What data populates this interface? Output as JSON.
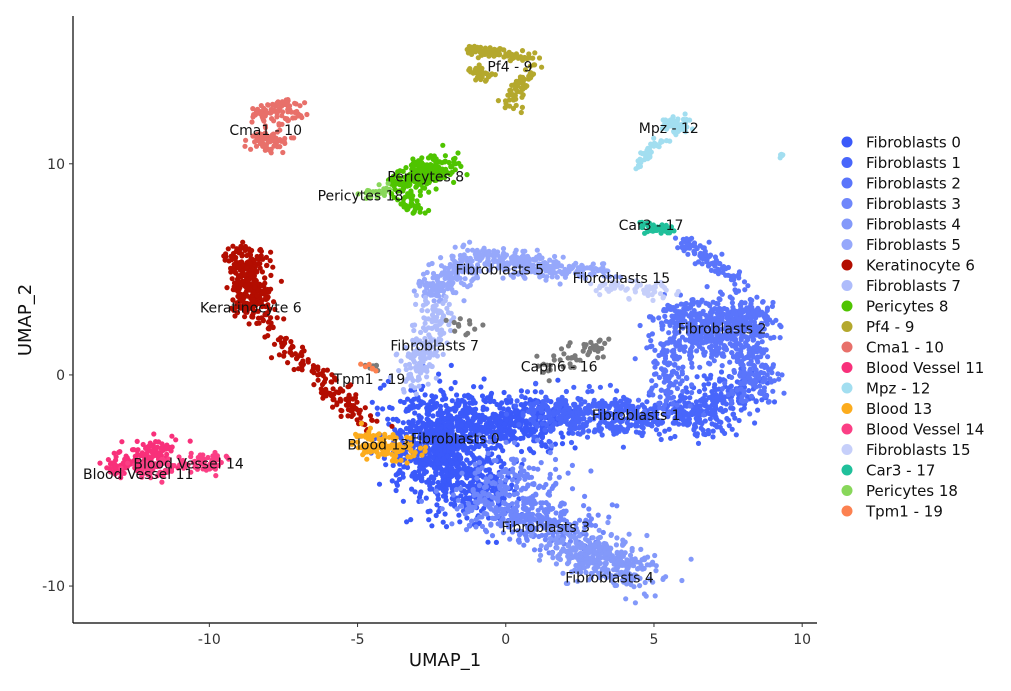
{
  "chart_data": {
    "type": "scatter",
    "title": "",
    "xlabel": "UMAP_1",
    "ylabel": "UMAP_2",
    "xlim": [
      -14.6,
      10.5
    ],
    "ylim": [
      -11.75,
      17.0
    ],
    "xticks": [
      -10,
      -5,
      0,
      5,
      10
    ],
    "yticks": [
      -10,
      0,
      10
    ],
    "grid": false,
    "legend": "right",
    "legend_entries": [
      {
        "name": "Fibroblasts 0",
        "color": "#3a59fa"
      },
      {
        "name": "Fibroblasts 1",
        "color": "#4866fb"
      },
      {
        "name": "Fibroblasts 2",
        "color": "#5a75fb"
      },
      {
        "name": "Fibroblasts 3",
        "color": "#6f87fb"
      },
      {
        "name": "Fibroblasts 4",
        "color": "#8399fa"
      },
      {
        "name": "Fibroblasts 5",
        "color": "#96a8fb"
      },
      {
        "name": "Keratinocyte 6",
        "color": "#b30d00"
      },
      {
        "name": "Fibroblasts 7",
        "color": "#aebcfb"
      },
      {
        "name": "Pericytes 8",
        "color": "#4fc400"
      },
      {
        "name": "Pf4 - 9",
        "color": "#b4a82d"
      },
      {
        "name": "Cma1 - 10",
        "color": "#e8706a"
      },
      {
        "name": "Blood Vessel 11",
        "color": "#f8307a"
      },
      {
        "name": "Mpz - 12",
        "color": "#a2def0"
      },
      {
        "name": "Blood 13",
        "color": "#fcac1d"
      },
      {
        "name": "Blood Vessel 14",
        "color": "#fb3f85"
      },
      {
        "name": "Fibroblasts 15",
        "color": "#c6cffa"
      },
      {
        "name": "Car3 - 17",
        "color": "#20c09b"
      },
      {
        "name": "Pericytes 18",
        "color": "#88d75a"
      },
      {
        "name": "Tpm1 - 19",
        "color": "#fc8150"
      }
    ],
    "clusters": [
      {
        "name": "Fibroblasts 0",
        "label": "Fibroblasts 0",
        "color": "#3a59fa",
        "label_pos": [
          -1.7,
          -3.0
        ],
        "segments": [
          [
            -2.6,
            -1.5,
            -1.5,
            -5.5,
            0.9,
            700
          ],
          [
            -1.5,
            -2.2,
            1.5,
            -2.2,
            0.6,
            400
          ],
          [
            -2.8,
            -2.5,
            -0.5,
            -6.5,
            0.6,
            250
          ]
        ]
      },
      {
        "name": "Fibroblasts 1",
        "label": "Fibroblasts 1",
        "color": "#4866fb",
        "label_pos": [
          4.4,
          -1.9
        ],
        "segments": [
          [
            1.0,
            -1.8,
            7.0,
            -2.0,
            0.5,
            550
          ],
          [
            6.5,
            -1.5,
            8.3,
            -0.5,
            0.5,
            150
          ]
        ]
      },
      {
        "name": "Fibroblasts 2",
        "label": "Fibroblasts 2",
        "color": "#5a75fb",
        "label_pos": [
          7.3,
          2.2
        ],
        "segments": [
          [
            5.5,
            2.8,
            8.3,
            2.6,
            0.45,
            300
          ],
          [
            5.4,
            1.5,
            5.6,
            -1.2,
            0.4,
            120
          ],
          [
            8.2,
            3.5,
            8.3,
            -1.0,
            0.4,
            250
          ],
          [
            6.0,
            1.8,
            7.8,
            1.5,
            0.5,
            200
          ],
          [
            5.9,
            6.3,
            8.0,
            4.5,
            0.2,
            90
          ]
        ]
      },
      {
        "name": "Fibroblasts 3",
        "label": "Fibroblasts 3",
        "color": "#6f87fb",
        "label_pos": [
          1.35,
          -7.2
        ],
        "segments": [
          [
            -1.0,
            -6.0,
            2.5,
            -7.5,
            0.6,
            350
          ],
          [
            0.0,
            -4.0,
            1.5,
            -6.0,
            0.7,
            100
          ]
        ]
      },
      {
        "name": "Fibroblasts 4",
        "label": "Fibroblasts 4",
        "color": "#8399fa",
        "label_pos": [
          3.5,
          -9.6
        ],
        "segments": [
          [
            1.8,
            -8.0,
            4.6,
            -9.4,
            0.55,
            350
          ]
        ]
      },
      {
        "name": "Fibroblasts 5",
        "label": "Fibroblasts 5",
        "color": "#96a8fb",
        "label_pos": [
          -0.2,
          5.0
        ],
        "segments": [
          [
            -2.5,
            4.0,
            -0.8,
            5.6,
            0.35,
            200
          ],
          [
            -0.8,
            5.6,
            1.8,
            5.0,
            0.3,
            200
          ],
          [
            1.8,
            5.0,
            3.5,
            4.9,
            0.2,
            60
          ]
        ]
      },
      {
        "name": "Keratinocyte 6",
        "label": "Keratinocyte 6",
        "color": "#b30d00",
        "label_pos": [
          -8.6,
          3.2
        ],
        "segments": [
          [
            -8.8,
            5.8,
            -8.5,
            3.0,
            0.35,
            300
          ],
          [
            -8.2,
            2.6,
            -5.2,
            -1.7,
            0.25,
            120
          ],
          [
            -5.5,
            -1.0,
            -4.6,
            -2.4,
            0.2,
            40
          ]
        ]
      },
      {
        "name": "Fibroblasts 7",
        "label": "Fibroblasts 7",
        "color": "#aebcfb",
        "label_pos": [
          -2.4,
          1.4
        ],
        "segments": [
          [
            -2.2,
            3.3,
            -3.2,
            -0.5,
            0.35,
            180
          ]
        ]
      },
      {
        "name": "Pericytes 8",
        "label": "Pericytes 8",
        "color": "#4fc400",
        "label_pos": [
          -2.7,
          9.4
        ],
        "segments": [
          [
            -3.5,
            9.0,
            -2.0,
            10.0,
            0.35,
            250
          ],
          [
            -3.3,
            8.2,
            -3.0,
            7.7,
            0.2,
            30
          ]
        ]
      },
      {
        "name": "Pf4 - 9",
        "label": "Pf4 - 9",
        "color": "#b4a82d",
        "label_pos": [
          0.14,
          14.6
        ],
        "segments": [
          [
            -1.2,
            15.4,
            0.9,
            15.0,
            0.15,
            80
          ],
          [
            -1.1,
            14.3,
            -0.6,
            14.2,
            0.15,
            40
          ],
          [
            0.9,
            14.6,
            0.0,
            12.6,
            0.2,
            60
          ]
        ]
      },
      {
        "name": "Cma1 - 10",
        "label": "Cma1 - 10",
        "color": "#e8706a",
        "label_pos": [
          -8.1,
          11.6
        ],
        "segments": [
          [
            -8.3,
            12.3,
            -7.2,
            12.5,
            0.3,
            90
          ],
          [
            -8.4,
            11.2,
            -7.5,
            11.0,
            0.25,
            60
          ]
        ]
      },
      {
        "name": "Blood Vessel 11",
        "label": "Blood Vessel 11",
        "color": "#f8307a",
        "label_pos": [
          -12.4,
          -4.7
        ],
        "segments": [
          [
            -13.2,
            -4.3,
            -11.3,
            -3.5,
            0.3,
            150
          ]
        ]
      },
      {
        "name": "Mpz - 12",
        "label": "Mpz - 12",
        "color": "#a2def0",
        "label_pos": [
          5.5,
          11.7
        ],
        "segments": [
          [
            5.2,
            12.0,
            6.0,
            11.8,
            0.2,
            60
          ],
          [
            5.2,
            11.2,
            4.4,
            9.8,
            0.12,
            40
          ],
          [
            9.3,
            10.4,
            9.3,
            10.4,
            0.05,
            5
          ]
        ]
      },
      {
        "name": "Blood 13",
        "label": "Blood 13",
        "color": "#fcac1d",
        "label_pos": [
          -4.3,
          -3.3
        ],
        "segments": [
          [
            -4.9,
            -3.2,
            -3.4,
            -3.6,
            0.3,
            120
          ]
        ]
      },
      {
        "name": "Blood Vessel 14",
        "label": "Blood Vessel 14",
        "color": "#fb3f85",
        "label_pos": [
          -10.7,
          -4.2
        ],
        "segments": [
          [
            -12.5,
            -4.6,
            -9.5,
            -4.0,
            0.25,
            100
          ]
        ]
      },
      {
        "name": "Fibroblasts 15",
        "label": "Fibroblasts 15",
        "color": "#c6cffa",
        "label_pos": [
          3.9,
          4.6
        ],
        "segments": [
          [
            3.2,
            4.2,
            5.5,
            4.0,
            0.2,
            60
          ]
        ]
      },
      {
        "name": "Capn6 - 16",
        "label": "Capn6 - 16",
        "color": "#7a7a7a",
        "label_pos": [
          1.8,
          0.4
        ],
        "segments": [
          [
            1.4,
            0.2,
            3.2,
            1.5,
            0.3,
            50
          ],
          [
            -1.8,
            2.3,
            -1.0,
            2.3,
            0.2,
            12
          ],
          [
            -4.7,
            0.4,
            -4.2,
            0.4,
            0.1,
            8
          ]
        ]
      },
      {
        "name": "Car3 - 17",
        "label": "Car3 - 17",
        "color": "#20c09b",
        "label_pos": [
          4.9,
          7.1
        ],
        "segments": [
          [
            4.6,
            7.1,
            5.6,
            6.8,
            0.12,
            50
          ]
        ]
      },
      {
        "name": "Pericytes 18",
        "label": "Pericytes 18",
        "color": "#88d75a",
        "label_pos": [
          -4.9,
          8.5
        ],
        "segments": [
          [
            -4.8,
            8.5,
            -3.9,
            8.9,
            0.15,
            25
          ]
        ]
      },
      {
        "name": "Tpm1 - 19",
        "label": "Tpm1 - 19",
        "color": "#fc8150",
        "label_pos": [
          -4.6,
          -0.2
        ],
        "segments": [
          [
            -4.8,
            0.4,
            -4.5,
            0.3,
            0.1,
            6
          ]
        ]
      }
    ]
  }
}
